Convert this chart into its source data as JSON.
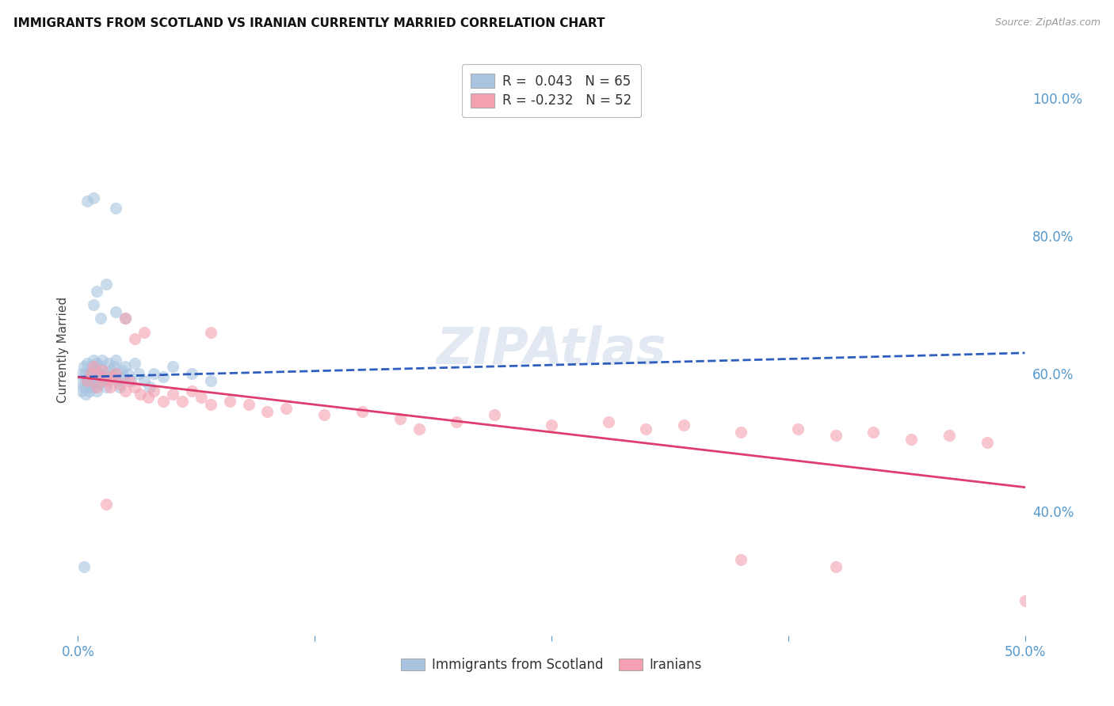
{
  "title": "IMMIGRANTS FROM SCOTLAND VS IRANIAN CURRENTLY MARRIED CORRELATION CHART",
  "source": "Source: ZipAtlas.com",
  "ylabel": "Currently Married",
  "xlim": [
    0.0,
    0.5
  ],
  "ylim": [
    0.22,
    1.05
  ],
  "scotland_color": "#a8c4e0",
  "iranian_color": "#f4a0b0",
  "trend_scotland_color": "#2255bb",
  "trend_iranian_color": "#dd3366",
  "scotland_R": 0.043,
  "scotland_N": 65,
  "iranian_R": -0.232,
  "iranian_N": 52,
  "watermark": "ZIPAtlas",
  "scotland_points": [
    [
      0.001,
      0.59
    ],
    [
      0.002,
      0.575
    ],
    [
      0.002,
      0.6
    ],
    [
      0.003,
      0.61
    ],
    [
      0.003,
      0.58
    ],
    [
      0.004,
      0.59
    ],
    [
      0.004,
      0.57
    ],
    [
      0.004,
      0.6
    ],
    [
      0.005,
      0.615
    ],
    [
      0.005,
      0.595
    ],
    [
      0.005,
      0.58
    ],
    [
      0.006,
      0.6
    ],
    [
      0.006,
      0.585
    ],
    [
      0.006,
      0.575
    ],
    [
      0.007,
      0.595
    ],
    [
      0.007,
      0.61
    ],
    [
      0.008,
      0.58
    ],
    [
      0.008,
      0.6
    ],
    [
      0.008,
      0.62
    ],
    [
      0.009,
      0.59
    ],
    [
      0.009,
      0.605
    ],
    [
      0.01,
      0.595
    ],
    [
      0.01,
      0.575
    ],
    [
      0.01,
      0.615
    ],
    [
      0.011,
      0.6
    ],
    [
      0.011,
      0.585
    ],
    [
      0.012,
      0.59
    ],
    [
      0.012,
      0.61
    ],
    [
      0.013,
      0.62
    ],
    [
      0.013,
      0.595
    ],
    [
      0.014,
      0.6
    ],
    [
      0.015,
      0.58
    ],
    [
      0.016,
      0.615
    ],
    [
      0.016,
      0.59
    ],
    [
      0.017,
      0.605
    ],
    [
      0.018,
      0.595
    ],
    [
      0.019,
      0.61
    ],
    [
      0.02,
      0.6
    ],
    [
      0.02,
      0.62
    ],
    [
      0.021,
      0.59
    ],
    [
      0.022,
      0.58
    ],
    [
      0.023,
      0.605
    ],
    [
      0.024,
      0.595
    ],
    [
      0.025,
      0.61
    ],
    [
      0.026,
      0.6
    ],
    [
      0.028,
      0.59
    ],
    [
      0.03,
      0.615
    ],
    [
      0.032,
      0.6
    ],
    [
      0.035,
      0.59
    ],
    [
      0.038,
      0.58
    ],
    [
      0.04,
      0.6
    ],
    [
      0.045,
      0.595
    ],
    [
      0.05,
      0.61
    ],
    [
      0.06,
      0.6
    ],
    [
      0.07,
      0.59
    ],
    [
      0.008,
      0.7
    ],
    [
      0.01,
      0.72
    ],
    [
      0.012,
      0.68
    ],
    [
      0.015,
      0.73
    ],
    [
      0.02,
      0.69
    ],
    [
      0.025,
      0.68
    ],
    [
      0.005,
      0.85
    ],
    [
      0.008,
      0.855
    ],
    [
      0.02,
      0.84
    ],
    [
      0.003,
      0.32
    ]
  ],
  "iranian_points": [
    [
      0.005,
      0.59
    ],
    [
      0.007,
      0.6
    ],
    [
      0.008,
      0.61
    ],
    [
      0.01,
      0.58
    ],
    [
      0.012,
      0.595
    ],
    [
      0.013,
      0.605
    ],
    [
      0.015,
      0.59
    ],
    [
      0.017,
      0.58
    ],
    [
      0.018,
      0.595
    ],
    [
      0.02,
      0.6
    ],
    [
      0.022,
      0.585
    ],
    [
      0.025,
      0.575
    ],
    [
      0.027,
      0.59
    ],
    [
      0.03,
      0.58
    ],
    [
      0.033,
      0.57
    ],
    [
      0.037,
      0.565
    ],
    [
      0.04,
      0.575
    ],
    [
      0.045,
      0.56
    ],
    [
      0.05,
      0.57
    ],
    [
      0.055,
      0.56
    ],
    [
      0.06,
      0.575
    ],
    [
      0.065,
      0.565
    ],
    [
      0.07,
      0.555
    ],
    [
      0.08,
      0.56
    ],
    [
      0.09,
      0.555
    ],
    [
      0.1,
      0.545
    ],
    [
      0.11,
      0.55
    ],
    [
      0.13,
      0.54
    ],
    [
      0.15,
      0.545
    ],
    [
      0.17,
      0.535
    ],
    [
      0.2,
      0.53
    ],
    [
      0.22,
      0.54
    ],
    [
      0.25,
      0.525
    ],
    [
      0.28,
      0.53
    ],
    [
      0.3,
      0.52
    ],
    [
      0.32,
      0.525
    ],
    [
      0.35,
      0.515
    ],
    [
      0.38,
      0.52
    ],
    [
      0.4,
      0.51
    ],
    [
      0.42,
      0.515
    ],
    [
      0.44,
      0.505
    ],
    [
      0.46,
      0.51
    ],
    [
      0.48,
      0.5
    ],
    [
      0.025,
      0.68
    ],
    [
      0.03,
      0.65
    ],
    [
      0.035,
      0.66
    ],
    [
      0.015,
      0.41
    ],
    [
      0.35,
      0.33
    ],
    [
      0.4,
      0.32
    ],
    [
      0.5,
      0.27
    ],
    [
      0.18,
      0.52
    ],
    [
      0.07,
      0.66
    ]
  ],
  "x_ticks": [
    0.0,
    0.125,
    0.25,
    0.375,
    0.5
  ],
  "x_ticklabels": [
    "0.0%",
    "",
    "",
    "",
    "50.0%"
  ],
  "y_ticks_right": [
    0.4,
    0.6,
    0.8,
    1.0
  ],
  "y_ticklabels_right": [
    "40.0%",
    "60.0%",
    "80.0%",
    "100.0%"
  ],
  "grid_color": "#c8d8ec",
  "tick_color": "#5599cc",
  "ylabel_color": "#444444"
}
